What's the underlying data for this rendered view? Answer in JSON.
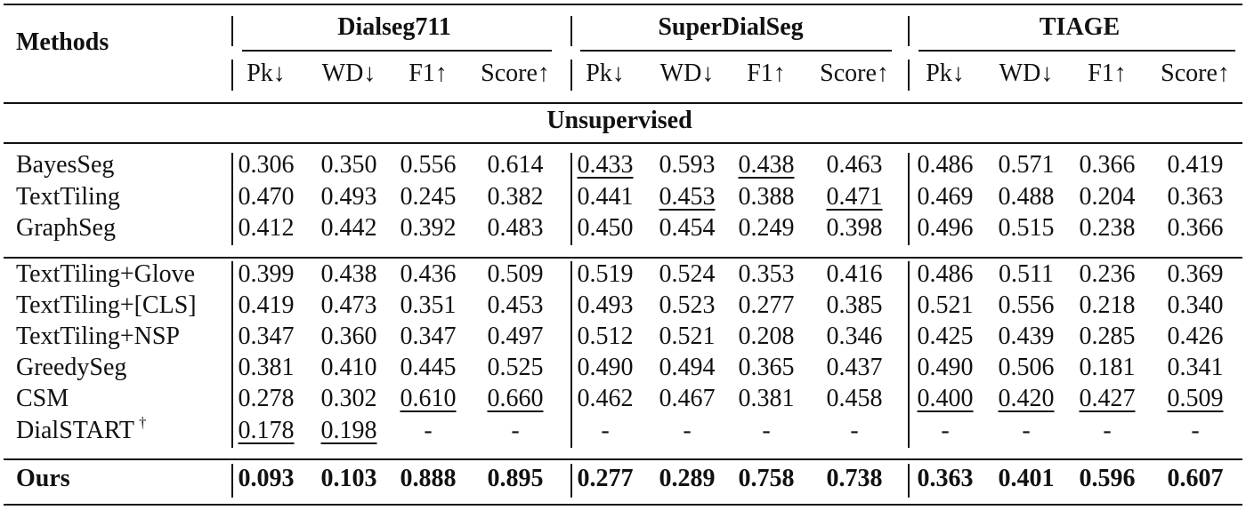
{
  "header": {
    "methods": "Methods",
    "datasets": [
      "Dialseg711",
      "SuperDialSeg",
      "TIAGE"
    ],
    "metrics": [
      "Pk↓",
      "WD↓",
      "F1↑",
      "Score↑"
    ]
  },
  "section_title": "Unsupervised",
  "groups": [
    [
      {
        "method": "BayesSeg",
        "values": [
          "0.306",
          "0.350",
          "0.556",
          "0.614",
          "0.433",
          "0.593",
          "0.438",
          "0.463",
          "0.486",
          "0.571",
          "0.366",
          "0.419"
        ]
      },
      {
        "method": "TextTiling",
        "values": [
          "0.470",
          "0.493",
          "0.245",
          "0.382",
          "0.441",
          "0.453",
          "0.388",
          "0.471",
          "0.469",
          "0.488",
          "0.204",
          "0.363"
        ]
      },
      {
        "method": "GraphSeg",
        "values": [
          "0.412",
          "0.442",
          "0.392",
          "0.483",
          "0.450",
          "0.454",
          "0.249",
          "0.398",
          "0.496",
          "0.515",
          "0.238",
          "0.366"
        ]
      }
    ],
    [
      {
        "method": "TextTiling+Glove",
        "values": [
          "0.399",
          "0.438",
          "0.436",
          "0.509",
          "0.519",
          "0.524",
          "0.353",
          "0.416",
          "0.486",
          "0.511",
          "0.236",
          "0.369"
        ]
      },
      {
        "method": "TextTiling+[CLS]",
        "values": [
          "0.419",
          "0.473",
          "0.351",
          "0.453",
          "0.493",
          "0.523",
          "0.277",
          "0.385",
          "0.521",
          "0.556",
          "0.218",
          "0.340"
        ]
      },
      {
        "method": "TextTiling+NSP",
        "values": [
          "0.347",
          "0.360",
          "0.347",
          "0.497",
          "0.512",
          "0.521",
          "0.208",
          "0.346",
          "0.425",
          "0.439",
          "0.285",
          "0.426"
        ]
      },
      {
        "method": "GreedySeg",
        "values": [
          "0.381",
          "0.410",
          "0.445",
          "0.525",
          "0.490",
          "0.494",
          "0.365",
          "0.437",
          "0.490",
          "0.506",
          "0.181",
          "0.341"
        ]
      },
      {
        "method": "CSM",
        "values": [
          "0.278",
          "0.302",
          "0.610",
          "0.660",
          "0.462",
          "0.467",
          "0.381",
          "0.458",
          "0.400",
          "0.420",
          "0.427",
          "0.509"
        ]
      },
      {
        "method": "DialSTART",
        "sup": "†",
        "values": [
          "0.178",
          "0.198",
          "-",
          "-",
          "-",
          "-",
          "-",
          "-",
          "-",
          "-",
          "-",
          "-"
        ]
      }
    ]
  ],
  "ours": {
    "method": "Ours",
    "values": [
      "0.093",
      "0.103",
      "0.888",
      "0.895",
      "0.277",
      "0.289",
      "0.758",
      "0.738",
      "0.363",
      "0.401",
      "0.596",
      "0.607"
    ]
  },
  "underlined": {
    "BayesSeg": [
      4,
      6
    ],
    "TextTiling": [
      5,
      7
    ],
    "CSM": [
      2,
      3,
      8,
      9,
      10,
      11
    ],
    "DialSTART": [
      0,
      1
    ]
  }
}
